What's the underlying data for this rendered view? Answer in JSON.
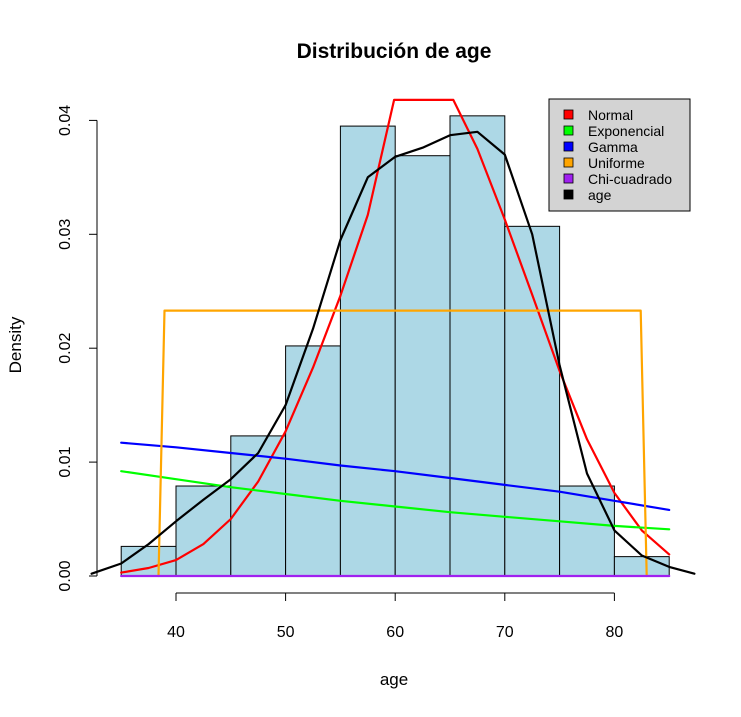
{
  "chart_data": {
    "type": "bar",
    "title": "Distribución de age",
    "xlabel": "age",
    "ylabel": "Density",
    "xlim": [
      32,
      88
    ],
    "ylim": [
      0,
      0.0405
    ],
    "xticks": [
      40,
      50,
      60,
      70,
      80
    ],
    "yticks": [
      0.0,
      0.01,
      0.02,
      0.03,
      0.04
    ],
    "ytick_labels": [
      "0.00",
      "0.01",
      "0.02",
      "0.03",
      "0.04"
    ],
    "bar_color": "#ADD8E6",
    "bins": [
      {
        "start": 35,
        "end": 40,
        "density": 0.0026
      },
      {
        "start": 40,
        "end": 45,
        "density": 0.0079
      },
      {
        "start": 45,
        "end": 50,
        "density": 0.0123
      },
      {
        "start": 50,
        "end": 55,
        "density": 0.0202
      },
      {
        "start": 55,
        "end": 60,
        "density": 0.0395
      },
      {
        "start": 60,
        "end": 65,
        "density": 0.0369
      },
      {
        "start": 65,
        "end": 70,
        "density": 0.0404
      },
      {
        "start": 70,
        "end": 75,
        "density": 0.0307
      },
      {
        "start": 75,
        "end": 80,
        "density": 0.0079
      },
      {
        "start": 80,
        "end": 85,
        "density": 0.0017
      }
    ],
    "legend_position": "top-right",
    "series": [
      {
        "name": "Normal",
        "color": "#FF0000",
        "x": [
          35,
          37.5,
          40,
          42.5,
          45,
          47.5,
          50,
          52.5,
          55,
          57.5,
          59.9,
          65.3,
          67.5,
          70,
          72.5,
          75,
          77.5,
          80,
          82.5,
          85
        ],
        "y": [
          0.0003,
          0.0007,
          0.0014,
          0.0028,
          0.005,
          0.0083,
          0.0127,
          0.0183,
          0.0246,
          0.0317,
          0.0418,
          0.0418,
          0.0375,
          0.0313,
          0.0247,
          0.018,
          0.012,
          0.0073,
          0.004,
          0.0019
        ]
      },
      {
        "name": "Exponencial",
        "color": "#00FF00",
        "x": [
          35,
          40,
          45,
          50,
          55,
          60,
          65,
          70,
          75,
          80,
          85
        ],
        "y": [
          0.0092,
          0.0085,
          0.0078,
          0.0072,
          0.0066,
          0.0061,
          0.0056,
          0.0052,
          0.0048,
          0.0044,
          0.0041
        ]
      },
      {
        "name": "Gamma",
        "color": "#0000FF",
        "x": [
          35,
          40,
          45,
          50,
          55,
          60,
          65,
          70,
          75,
          80,
          85
        ],
        "y": [
          0.0117,
          0.0113,
          0.0108,
          0.0103,
          0.0097,
          0.0092,
          0.0086,
          0.008,
          0.0074,
          0.0066,
          0.0058
        ]
      },
      {
        "name": "Uniforme",
        "color": "#FFA500",
        "x": [
          38.4,
          38.95,
          82.4,
          82.95
        ],
        "y": [
          0.0,
          0.0233,
          0.0233,
          0.0
        ]
      },
      {
        "name": "Chi-cuadrado",
        "color": "#A020F0",
        "x": [
          35,
          85
        ],
        "y": [
          0.0,
          0.0
        ]
      },
      {
        "name": "age",
        "color": "#000000",
        "x": [
          32.3,
          35,
          37.5,
          40,
          42.5,
          45,
          47.5,
          50,
          52.5,
          55,
          57.5,
          60,
          62.5,
          65,
          67.5,
          70,
          72.5,
          75,
          77.5,
          80,
          82.5,
          85,
          87.3
        ],
        "y": [
          0.0002,
          0.0011,
          0.0028,
          0.0048,
          0.0067,
          0.0085,
          0.0108,
          0.015,
          0.0217,
          0.0295,
          0.035,
          0.0368,
          0.0376,
          0.0387,
          0.039,
          0.037,
          0.03,
          0.0185,
          0.009,
          0.004,
          0.0018,
          0.0008,
          0.0002
        ]
      }
    ]
  }
}
